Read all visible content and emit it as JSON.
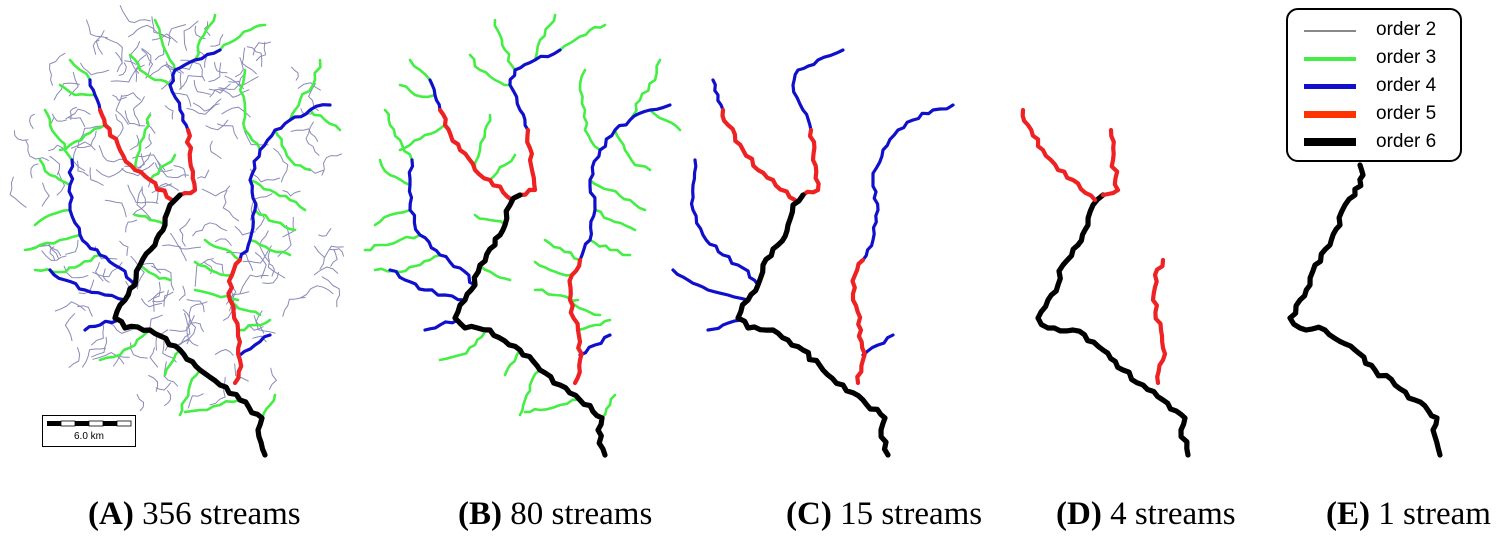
{
  "colors": {
    "order2": "#8a8ab8",
    "order3": "#44ee44",
    "order4": "#1010cc",
    "order5": "#ee2222",
    "order6": "#000000"
  },
  "legend": {
    "items": [
      {
        "label": "order 2",
        "color": "#888888"
      },
      {
        "label": "order 3",
        "color": "#44ee44"
      },
      {
        "label": "order 4",
        "color": "#1010cc"
      },
      {
        "label": "order 5",
        "color": "#ff3300"
      },
      {
        "label": "order 6",
        "color": "#000000"
      }
    ]
  },
  "scale_bar": {
    "label": "6.0  km"
  },
  "panels": [
    {
      "letter": "(A)",
      "caption": "356 streams"
    },
    {
      "letter": "(B)",
      "caption": "80 streams"
    },
    {
      "letter": "(C)",
      "caption": "15 streams"
    },
    {
      "letter": "(D)",
      "caption": "4 streams"
    },
    {
      "letter": "(E)",
      "caption": "1 stream"
    }
  ]
}
